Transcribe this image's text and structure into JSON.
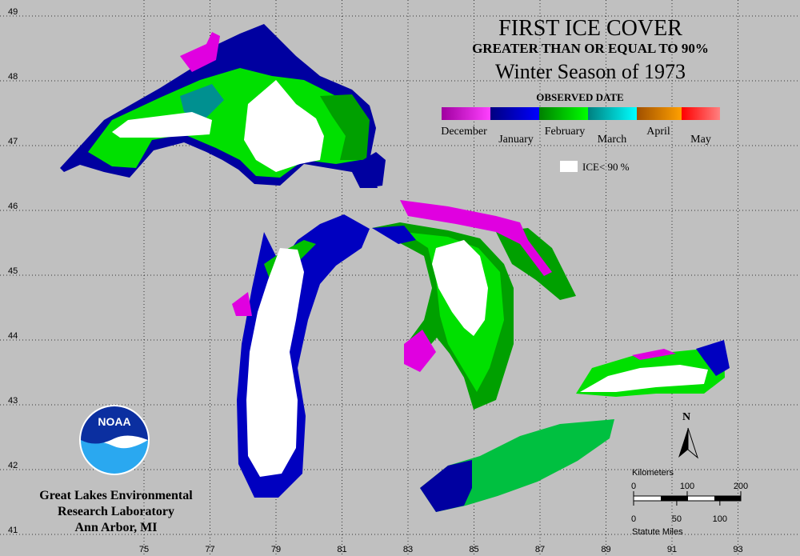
{
  "title": "FIRST ICE COVER",
  "subtitle": "GREATER THAN OR EQUAL TO 90%",
  "season": "Winter Season of 1973",
  "legend": {
    "title": "OBSERVED DATE",
    "months": [
      "December",
      "January",
      "February",
      "March",
      "April",
      "May"
    ],
    "ice_label": "ICE< 90 %"
  },
  "grid": {
    "lat": [
      49,
      48,
      47,
      46,
      45,
      44,
      43,
      42,
      41
    ],
    "lon": [
      93,
      91,
      89,
      87,
      85,
      83,
      81,
      79,
      77,
      75
    ]
  },
  "scale": {
    "km_title": "Kilometers",
    "km_ticks": [
      0,
      100,
      200
    ],
    "mi_title": "Statute Miles",
    "mi_ticks": [
      0,
      50,
      100
    ]
  },
  "north": "N",
  "logo": "NOAA",
  "credit": [
    "Great Lakes Environmental",
    "Research Laboratory",
    "Ann Arbor, MI"
  ]
}
